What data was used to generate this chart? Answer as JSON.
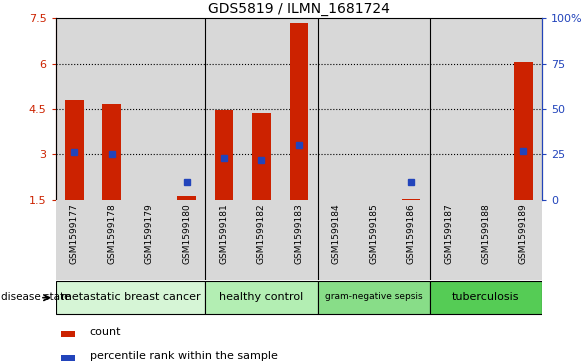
{
  "title": "GDS5819 / ILMN_1681724",
  "samples": [
    "GSM1599177",
    "GSM1599178",
    "GSM1599179",
    "GSM1599180",
    "GSM1599181",
    "GSM1599182",
    "GSM1599183",
    "GSM1599184",
    "GSM1599185",
    "GSM1599186",
    "GSM1599187",
    "GSM1599188",
    "GSM1599189"
  ],
  "counts": [
    4.8,
    4.65,
    1.5,
    1.62,
    4.45,
    4.35,
    7.35,
    1.5,
    1.5,
    1.52,
    1.5,
    1.5,
    6.05
  ],
  "percentile_ranks_pct": [
    26,
    25,
    null,
    10,
    23,
    22,
    30,
    null,
    null,
    10,
    null,
    null,
    27
  ],
  "ylim_left": [
    1.5,
    7.5
  ],
  "ylim_right": [
    0,
    100
  ],
  "yticks_left": [
    1.5,
    3.0,
    4.5,
    6.0,
    7.5
  ],
  "yticks_right": [
    0,
    25,
    50,
    75,
    100
  ],
  "ytick_labels_left": [
    "1.5",
    "3",
    "4.5",
    "6",
    "7.5"
  ],
  "ytick_labels_right": [
    "0",
    "25",
    "50",
    "75",
    "100%"
  ],
  "bar_color": "#cc2200",
  "dot_color": "#2244bb",
  "groups": [
    {
      "label": "metastatic breast cancer",
      "start": 0,
      "end": 3,
      "color": "#d6f5d6"
    },
    {
      "label": "healthy control",
      "start": 4,
      "end": 6,
      "color": "#b3eeb3"
    },
    {
      "label": "gram-negative sepsis",
      "start": 7,
      "end": 9,
      "color": "#88dd88"
    },
    {
      "label": "tuberculosis",
      "start": 10,
      "end": 12,
      "color": "#55cc55"
    }
  ],
  "disease_state_label": "disease state",
  "legend_count_label": "count",
  "legend_percentile_label": "percentile rank within the sample",
  "bar_width": 0.5,
  "base_value": 1.5,
  "col_bg_color": "#d8d8d8",
  "plot_bg_color": "#ffffff"
}
